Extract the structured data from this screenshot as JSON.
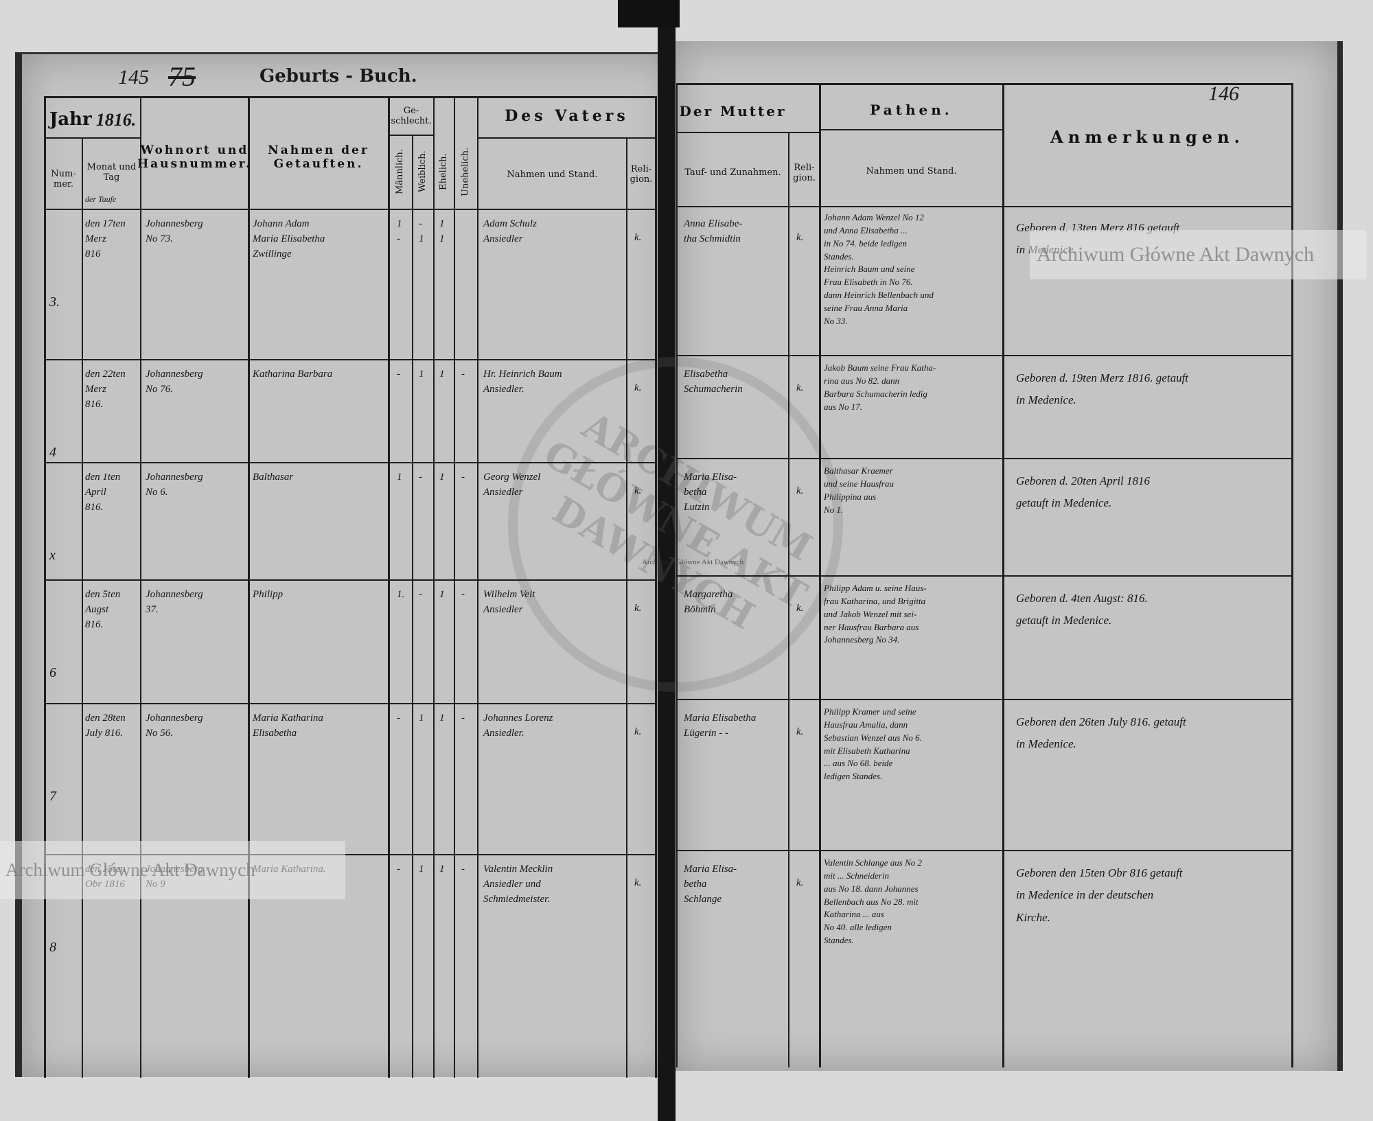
{
  "header": {
    "page_number_left": "145",
    "page_number_old": "75",
    "page_number_right": "146",
    "title": "Geburts - Buch.",
    "year_label": "Jahr",
    "year_value": "1816."
  },
  "columns": {
    "number": "Num- mer.",
    "month_day": "Monat und Tag",
    "month_day_note": "der Taufe",
    "residence": "Wohnort und Hausnummer.",
    "names": "Nahmen der Getauften.",
    "sex": "Ge- schlecht.",
    "male": "Männlich.",
    "female": "Weiblich.",
    "legitimate": "Ehelich.",
    "illegitimate": "Unehelich.",
    "father": "Des Vaters",
    "father_name": "Nahmen und Stand.",
    "father_religion": "Reli- gion.",
    "mother": "Der Mutter",
    "mother_name": "Tauf- und Zunahmen.",
    "mother_religion": "Reli- gion.",
    "godparents": "Pathen.",
    "godparents_name": "Nahmen und Stand.",
    "remarks": "Anmerkungen."
  },
  "rows": [
    {
      "num": "3.",
      "date": "den 17ten\nMerz\n816",
      "residence": "Johannesberg\nNo 73.",
      "names": "Johann Adam\nMaria Elisabetha\nZwillinge",
      "male": "1\n-",
      "female": "-\n1",
      "legit": "1\n1",
      "illegit": "",
      "father": "Adam Schulz\nAnsiedler",
      "father_rel": "k.",
      "mother": "Anna Elisabe-\ntha Schmidtin",
      "mother_rel": "k.",
      "godparents": "Johann Adam Wenzel No 12\nund Anna Elisabetha ... \nin No 74. beide ledigen\nStandes.\nHeinrich Baum und seine\nFrau Elisabeth in No 76.\ndann Heinrich Bellenbach und\nseine Frau Anna Maria\nNo 33.",
      "remarks": "Geboren d. 13ten Merz 816 getauft\nin Medenice."
    },
    {
      "num": "4",
      "date": "den 22ten\nMerz\n816.",
      "residence": "Johannesberg\nNo 76.",
      "names": "Katharina Barbara",
      "male": "-",
      "female": "1",
      "legit": "1",
      "illegit": "-",
      "father": "Hr. Heinrich Baum\nAnsiedler.",
      "father_rel": "k.",
      "mother": "Elisabetha\nSchumacherin",
      "mother_rel": "k.",
      "godparents": "Jakob Baum seine Frau Katha-\nrina aus No 82. dann\nBarbara Schumacherin ledig\naus No 17.",
      "remarks": "Geboren d. 19ten Merz 1816. getauft\nin Medenice."
    },
    {
      "num": "x",
      "date": "den 1ten\nApril\n816.",
      "residence": "Johannesberg\nNo 6.",
      "names": "Balthasar",
      "male": "1",
      "female": "-",
      "legit": "1",
      "illegit": "-",
      "father": "Georg Wenzel\nAnsiedler",
      "father_rel": "k.",
      "mother": "Maria Elisa-\nbetha\nLutzin",
      "mother_rel": "k.",
      "godparents": "Balthasar Kraemer\nund seine Hausfrau\nPhilippina aus\nNo 1.",
      "remarks": "Geboren d. 20ten April 1816\ngetauft in Medenice."
    },
    {
      "num": "6",
      "date": "den 5ten\nAugst\n816.",
      "residence": "Johannesberg\n37.",
      "names": "Philipp",
      "male": "1.",
      "female": "-",
      "legit": "1",
      "illegit": "-",
      "father": "Wilhelm Veit\nAnsiedler",
      "father_rel": "k.",
      "mother": "Margaretha\nBöhmin",
      "mother_rel": "k.",
      "godparents": "Philipp Adam u. seine Haus-\nfrau Katharina, und Brigitta\nund Jakob Wenzel mit sei-\nner Hausfrau Barbara aus\nJohannesberg No 34.",
      "remarks": "Geboren d. 4ten Augst: 816.\ngetauft in Medenice."
    },
    {
      "num": "7",
      "date": "den 28ten\nJuly 816.",
      "residence": "Johannesberg\nNo 56.",
      "names": "Maria Katharina\nElisabetha",
      "male": "-",
      "female": "1",
      "legit": "1",
      "illegit": "-",
      "father": "Johannes Lorenz\nAnsiedler.",
      "father_rel": "k.",
      "mother": "Maria Elisabetha\nLügerin - -",
      "mother_rel": "k.",
      "godparents": "Philipp Kramer und seine\nHausfrau Amalia, dann\nSebastian Wenzel aus No 6.\nmit Elisabeth Katharina\n... aus No 68. beide\nledigen Standes.",
      "remarks": "Geboren den 26ten July 816. getauft\nin Medenice."
    },
    {
      "num": "8",
      "date": "den 15ten\nObr 1816",
      "residence": "Johannesberg\nNo 9",
      "names": "Maria Katharina.",
      "male": "-",
      "female": "1",
      "legit": "1",
      "illegit": "-",
      "father": "Valentin Mecklin\nAnsiedler und\nSchmiedmeister.",
      "father_rel": "k.",
      "mother": "Maria Elisa-\nbetha\nSchlange",
      "mother_rel": "k.",
      "godparents": "Valentin Schlange aus No 2\nmit ... Schneiderin\naus No 18. dann Johannes\nBellenbach aus No 28. mit\nKatharina ... aus\nNo 40. alle ledigen\nStandes.",
      "remarks": "Geboren den 15ten Obr 816 getauft\nin Medenice in der deutschen\nKirche."
    }
  ],
  "watermark": {
    "text": "Archiwum Główne Akt Dawnych",
    "stamp_text": "ARCHIWUM GŁÓWNE AKT DAWNYCH"
  },
  "colors": {
    "paper": "#c4c4c4",
    "ink": "#1a1a1a",
    "spine": "#151515"
  }
}
